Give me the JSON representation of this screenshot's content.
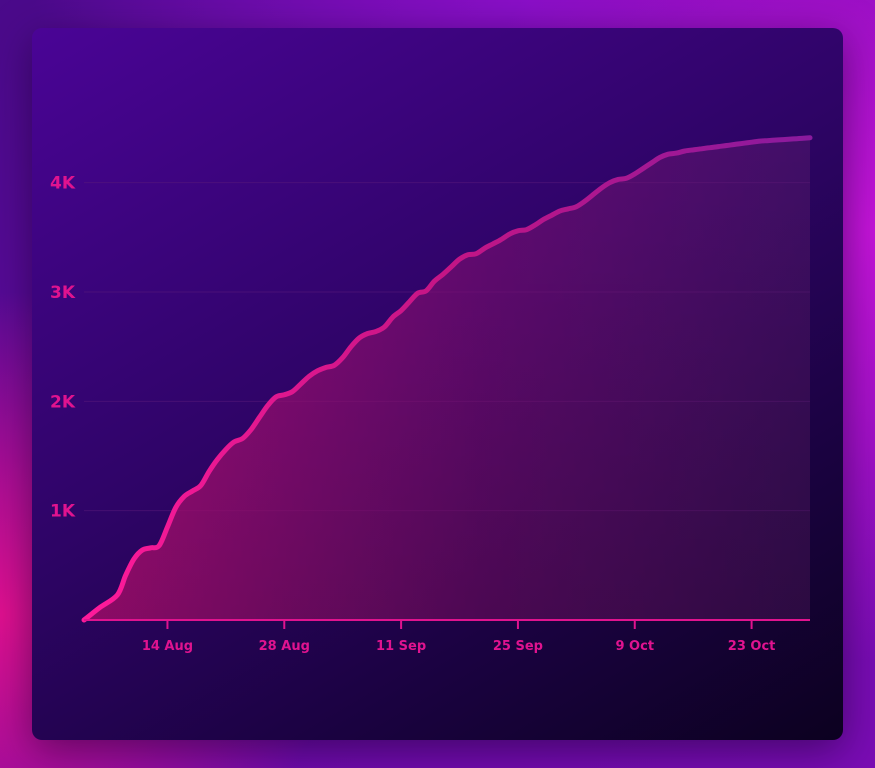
{
  "colors": {
    "line_start": "#ff1a9a",
    "line_end": "#8a1a9e",
    "tick_text": "#e0138f",
    "grid": "#5a1a7a"
  },
  "chart_data": {
    "type": "area",
    "title": "",
    "xlabel": "",
    "ylabel": "",
    "ylim": [
      0,
      4500
    ],
    "grid": "horizontal",
    "y_ticks": [
      {
        "label": "1K",
        "value": 1000
      },
      {
        "label": "2K",
        "value": 2000
      },
      {
        "label": "3K",
        "value": 3000
      },
      {
        "label": "4K",
        "value": 4000
      }
    ],
    "x_ticks": [
      {
        "label": "14 Aug",
        "value": "2023-08-14"
      },
      {
        "label": "28 Aug",
        "value": "2023-08-28"
      },
      {
        "label": "11 Sep",
        "value": "2023-09-11"
      },
      {
        "label": "25 Sep",
        "value": "2023-09-25"
      },
      {
        "label": "9 Oct",
        "value": "2023-10-09"
      },
      {
        "label": "23 Oct",
        "value": "2023-10-23"
      }
    ],
    "series": [
      {
        "x": [
          "2023-08-04",
          "2023-08-05",
          "2023-08-06",
          "2023-08-08",
          "2023-08-09",
          "2023-08-10",
          "2023-08-11",
          "2023-08-12",
          "2023-08-13",
          "2023-08-14",
          "2023-08-15",
          "2023-08-16",
          "2023-08-17",
          "2023-08-18",
          "2023-08-19",
          "2023-08-20",
          "2023-08-21",
          "2023-08-22",
          "2023-08-23",
          "2023-08-24",
          "2023-08-25",
          "2023-08-26",
          "2023-08-27",
          "2023-08-28",
          "2023-08-29",
          "2023-08-30",
          "2023-08-31",
          "2023-09-01",
          "2023-09-02",
          "2023-09-03",
          "2023-09-04",
          "2023-09-05",
          "2023-09-06",
          "2023-09-07",
          "2023-09-08",
          "2023-09-09",
          "2023-09-10",
          "2023-09-11",
          "2023-09-12",
          "2023-09-13",
          "2023-09-14",
          "2023-09-15",
          "2023-09-16",
          "2023-09-17",
          "2023-09-18",
          "2023-09-19",
          "2023-09-20",
          "2023-09-21",
          "2023-09-22",
          "2023-09-23",
          "2023-09-24",
          "2023-09-25",
          "2023-09-26",
          "2023-09-27",
          "2023-09-28",
          "2023-09-29",
          "2023-09-30",
          "2023-10-01",
          "2023-10-02",
          "2023-10-03",
          "2023-10-04",
          "2023-10-05",
          "2023-10-06",
          "2023-10-07",
          "2023-10-08",
          "2023-10-09",
          "2023-10-10",
          "2023-10-11",
          "2023-10-12",
          "2023-10-13",
          "2023-10-14",
          "2023-10-15",
          "2023-10-16",
          "2023-10-17",
          "2023-10-18",
          "2023-10-19",
          "2023-10-20",
          "2023-10-21",
          "2023-10-22",
          "2023-10-23",
          "2023-10-24",
          "2023-10-25",
          "2023-10-26",
          "2023-10-27",
          "2023-10-28",
          "2023-10-29",
          "2023-10-30"
        ],
        "values": [
          0,
          60,
          120,
          230,
          410,
          560,
          640,
          660,
          680,
          850,
          1030,
          1130,
          1180,
          1230,
          1360,
          1470,
          1560,
          1630,
          1660,
          1740,
          1850,
          1960,
          2040,
          2060,
          2090,
          2160,
          2230,
          2280,
          2310,
          2330,
          2400,
          2500,
          2580,
          2620,
          2640,
          2680,
          2770,
          2830,
          2910,
          2990,
          3010,
          3100,
          3160,
          3230,
          3300,
          3340,
          3350,
          3400,
          3440,
          3480,
          3530,
          3560,
          3570,
          3610,
          3660,
          3700,
          3740,
          3760,
          3780,
          3830,
          3890,
          3950,
          4000,
          4030,
          4040,
          4080,
          4130,
          4180,
          4230,
          4260,
          4270,
          4290,
          4300,
          4310,
          4320,
          4330,
          4340,
          4350,
          4360,
          4370,
          4380,
          4385,
          4390,
          4395,
          4400,
          4405,
          4410
        ]
      }
    ]
  }
}
